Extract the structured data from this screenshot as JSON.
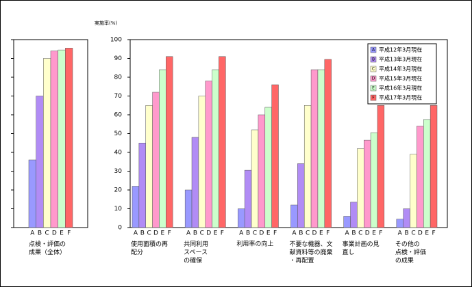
{
  "chart_data": {
    "type": "bar",
    "y_label": "実施率(%)",
    "categories": [
      "点検・評価の\n成果（全体）",
      "使用面積の再\n配分",
      "共同利用\nスペース\nの確保",
      "利用率の向上",
      "不要な機器、文\n献資料等の廃棄\n・再配置",
      "事業計画の見\n直し",
      "その他の\n点検・評価\nの成果"
    ],
    "series": [
      {
        "label": "A",
        "name": "平成12年3月現在",
        "color": "#9999ff",
        "values": [
          36,
          22,
          20,
          10,
          12,
          6,
          4.5
        ]
      },
      {
        "label": "B",
        "name": "平成13年3月現在",
        "color": "#b18cf5",
        "values": [
          70,
          45,
          48,
          30.5,
          34,
          13.5,
          10
        ]
      },
      {
        "label": "C",
        "name": "平成14年3月現在",
        "color": "#ffffcc",
        "values": [
          90,
          65,
          70,
          52,
          65,
          42,
          39
        ]
      },
      {
        "label": "D",
        "name": "平成15年3月現在",
        "color": "#ff99cc",
        "values": [
          94,
          72,
          78,
          60,
          84,
          46.5,
          54
        ]
      },
      {
        "label": "E",
        "name": "平成16年3月現在",
        "color": "#ccffcc",
        "values": [
          94.5,
          84,
          84,
          64,
          84,
          50.5,
          57.5
        ]
      },
      {
        "label": "F",
        "name": "平成17年3月現在",
        "color": "#ff6666",
        "values": [
          95.5,
          91,
          91,
          76,
          89.5,
          65,
          65
        ]
      }
    ],
    "ylim": [
      0,
      100
    ],
    "yticks": [
      0,
      10,
      20,
      30,
      40,
      50,
      60,
      70,
      80,
      90,
      100
    ]
  }
}
